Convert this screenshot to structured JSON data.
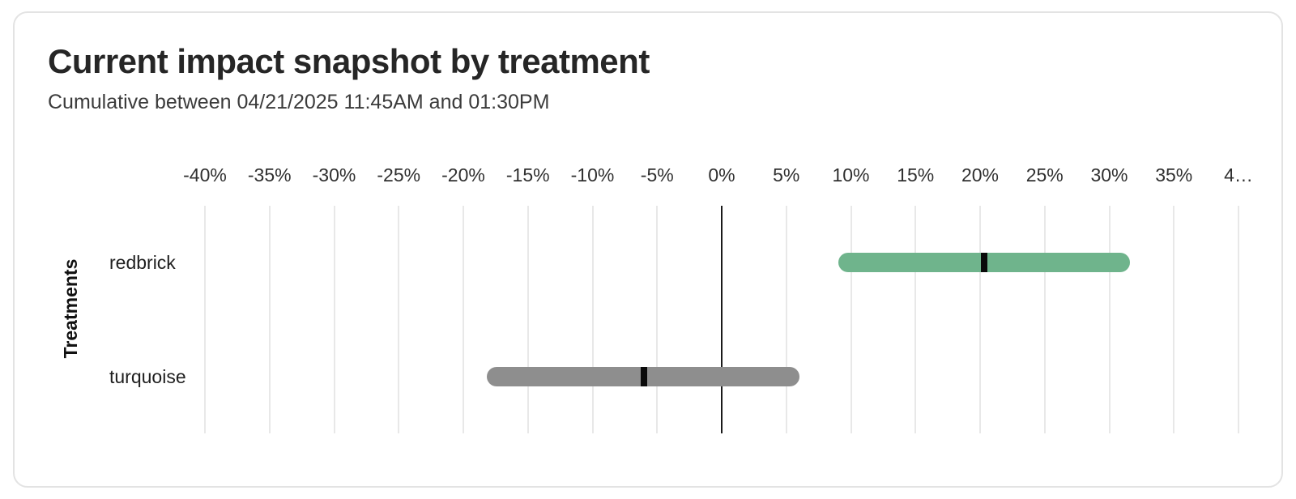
{
  "card": {
    "title": "Current impact snapshot by treatment",
    "subtitle": "Cumulative between 04/21/2025 11:45AM and 01:30PM"
  },
  "chart_data": {
    "type": "bar",
    "orientation": "horizontal",
    "title": "Current impact snapshot by treatment",
    "subtitle": "Cumulative between 04/21/2025 11:45AM and 01:30PM",
    "ylabel": "Treatments",
    "categories": [
      "redbrick",
      "turquoise"
    ],
    "series": [
      {
        "name": "redbrick",
        "low": 9.0,
        "high": 31.6,
        "point": 20.3,
        "color": "#6FB48C"
      },
      {
        "name": "turquoise",
        "low": -18.2,
        "high": 6.0,
        "point": -6.0,
        "color": "#8E8E8E"
      }
    ],
    "x_axis": {
      "min": -40,
      "max": 40,
      "tick_step": 5,
      "unit": "%",
      "tick_labels": [
        "-40%",
        "-35%",
        "-30%",
        "-25%",
        "-20%",
        "-15%",
        "-10%",
        "-5%",
        "0%",
        "5%",
        "10%",
        "15%",
        "20%",
        "25%",
        "30%",
        "35%",
        "4…"
      ]
    },
    "grid": true,
    "zero_line": true,
    "legend": "none",
    "colors": {
      "grid": "#e8e8e8",
      "zero_line": "#1a1a1a",
      "marker": "#0a0a0a",
      "tick_text": "#303030"
    }
  }
}
